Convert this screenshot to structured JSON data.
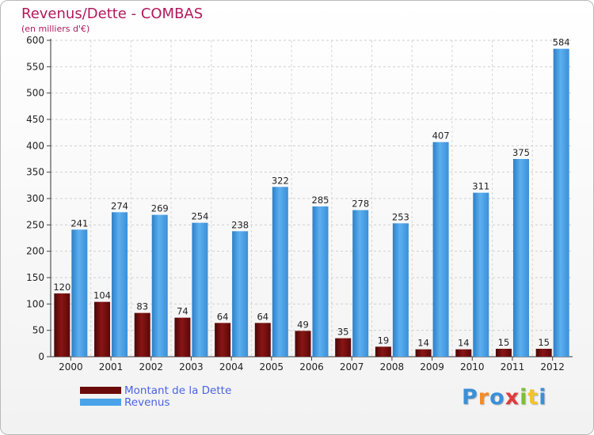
{
  "title": "Revenus/Dette - COMBAS",
  "subtitle": "(en milliers d'€)",
  "chart_data": {
    "type": "bar",
    "title": "Revenus/Dette - COMBAS",
    "subtitle": "(en milliers d'€)",
    "categories": [
      "2000",
      "2001",
      "2002",
      "2003",
      "2004",
      "2005",
      "2006",
      "2007",
      "2008",
      "2009",
      "2010",
      "2011",
      "2012"
    ],
    "series": [
      {
        "name": "Montant de la Dette",
        "color": "#7a1010",
        "values": [
          120,
          104,
          83,
          74,
          64,
          64,
          49,
          35,
          19,
          14,
          14,
          15,
          15
        ]
      },
      {
        "name": "Revenus",
        "color": "#3f9be0",
        "values": [
          241,
          274,
          269,
          254,
          238,
          322,
          285,
          278,
          253,
          407,
          311,
          375,
          584
        ]
      }
    ],
    "ylim": [
      0,
      600
    ],
    "yticks": [
      0,
      50,
      100,
      150,
      200,
      250,
      300,
      350,
      400,
      450,
      500,
      550,
      600
    ],
    "grid": true,
    "legend": "bottom-left"
  },
  "legend": {
    "items": [
      {
        "label": "Montant de la Dette",
        "color": "#6b0a0a"
      },
      {
        "label": "Revenus",
        "color": "#4aa3e8"
      }
    ]
  },
  "logo": {
    "letters": [
      "P",
      "r",
      "o",
      "x",
      "i",
      "t",
      "i"
    ],
    "colors": [
      "#3b8fd8",
      "#f28c28",
      "#3b8fd8",
      "#e03b3b",
      "#7bbf3a",
      "#f2c32a",
      "#3b8fd8"
    ]
  }
}
